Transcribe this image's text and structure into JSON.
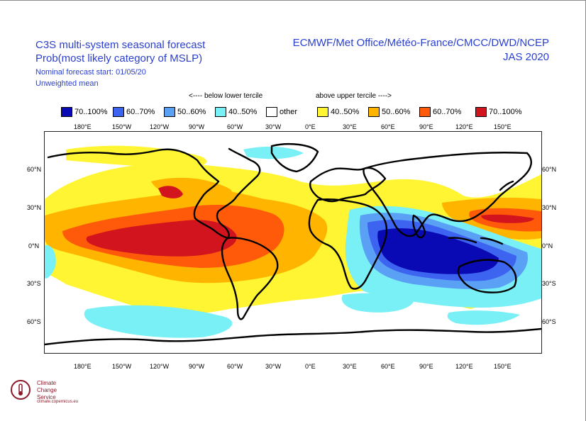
{
  "title_left": {
    "line1": "C3S multi-system seasonal forecast",
    "line2": "Prob(most likely category of MSLP)",
    "line3": "Nominal forecast start: 01/05/20",
    "line4": "Unweighted mean"
  },
  "title_right": {
    "line1": "ECMWF/Met Office/Météo-France/CMCC/DWD/NCEP",
    "line2": "JAS 2020"
  },
  "legend": {
    "below_label": "<---- below lower tercile",
    "above_label": "above upper tercile ---->",
    "items": [
      {
        "label": "70..100%",
        "color": "#0a0ab4"
      },
      {
        "label": "60..70%",
        "color": "#3c64f0"
      },
      {
        "label": "50..60%",
        "color": "#5aa0f5"
      },
      {
        "label": "40..50%",
        "color": "#78f0f5"
      },
      {
        "label": "other",
        "color": "#ffffff"
      },
      {
        "label": "40..50%",
        "color": "#fff533"
      },
      {
        "label": "50..60%",
        "color": "#ffb400"
      },
      {
        "label": "60..70%",
        "color": "#ff5a0a"
      },
      {
        "label": "70..100%",
        "color": "#d2141e"
      }
    ]
  },
  "map": {
    "top_longitudes": [
      "180°E",
      "150°W",
      "120°W",
      "90°W",
      "60°W",
      "30°W",
      "0°E",
      "30°E",
      "60°E",
      "90°E",
      "120°E",
      "150°E"
    ],
    "bottom_longitudes": [
      "180°E",
      "150°W",
      "120°W",
      "90°W",
      "60°W",
      "30°W",
      "0°E",
      "30°E",
      "60°E",
      "90°E",
      "120°E",
      "150°E"
    ],
    "left_latitudes": [
      "60°N",
      "30°N",
      "0°N",
      "30°S",
      "60°S"
    ],
    "right_latitudes": [
      "60°N",
      "30°N",
      "0°N",
      "30°S",
      "60°S"
    ]
  },
  "logo": {
    "line1": "Climate",
    "line2": "Change Service",
    "url": "climate.copernicus.eu"
  }
}
